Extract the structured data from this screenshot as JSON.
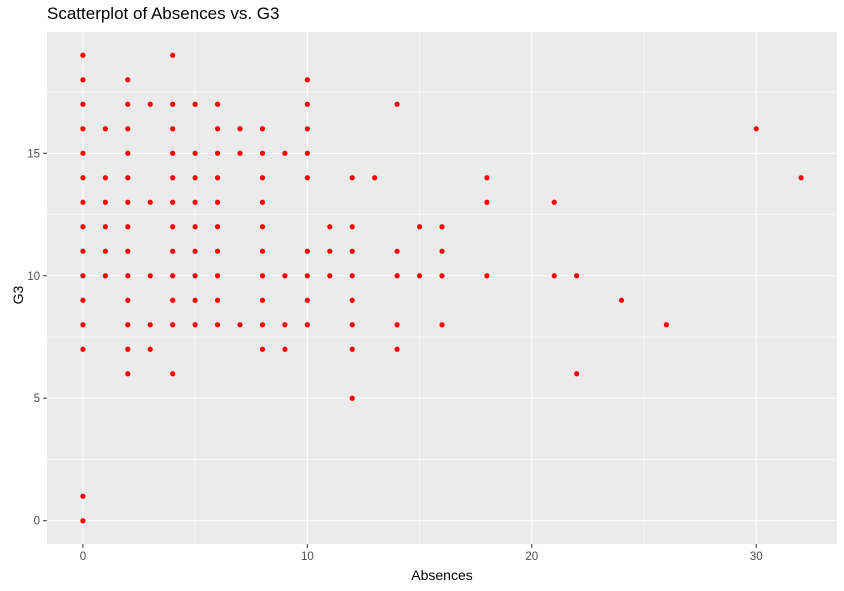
{
  "chart_data": {
    "type": "scatter",
    "title": "Scatterplot of Absences vs. G3",
    "xlabel": "Absences",
    "ylabel": "G3",
    "xlim": [
      -1.6,
      33.6
    ],
    "ylim": [
      -0.95,
      19.95
    ],
    "x_ticks": [
      0,
      10,
      20,
      30
    ],
    "y_ticks": [
      0,
      5,
      10,
      15
    ],
    "grid": true,
    "legend": "none",
    "colors": {
      "point": "#ff0000",
      "panel": "#ebebeb",
      "grid": "#ffffff"
    },
    "points": [
      [
        0,
        0
      ],
      [
        0,
        1
      ],
      [
        0,
        7
      ],
      [
        0,
        8
      ],
      [
        0,
        9
      ],
      [
        0,
        10
      ],
      [
        0,
        11
      ],
      [
        0,
        12
      ],
      [
        0,
        13
      ],
      [
        0,
        14
      ],
      [
        0,
        15
      ],
      [
        0,
        16
      ],
      [
        0,
        17
      ],
      [
        0,
        18
      ],
      [
        0,
        19
      ],
      [
        1,
        10
      ],
      [
        1,
        11
      ],
      [
        1,
        12
      ],
      [
        1,
        13
      ],
      [
        1,
        14
      ],
      [
        1,
        16
      ],
      [
        2,
        6
      ],
      [
        2,
        7
      ],
      [
        2,
        8
      ],
      [
        2,
        9
      ],
      [
        2,
        10
      ],
      [
        2,
        11
      ],
      [
        2,
        12
      ],
      [
        2,
        13
      ],
      [
        2,
        14
      ],
      [
        2,
        15
      ],
      [
        2,
        16
      ],
      [
        2,
        17
      ],
      [
        2,
        18
      ],
      [
        3,
        7
      ],
      [
        3,
        8
      ],
      [
        3,
        10
      ],
      [
        3,
        13
      ],
      [
        3,
        17
      ],
      [
        4,
        6
      ],
      [
        4,
        8
      ],
      [
        4,
        9
      ],
      [
        4,
        10
      ],
      [
        4,
        11
      ],
      [
        4,
        12
      ],
      [
        4,
        13
      ],
      [
        4,
        14
      ],
      [
        4,
        15
      ],
      [
        4,
        16
      ],
      [
        4,
        17
      ],
      [
        4,
        19
      ],
      [
        5,
        8
      ],
      [
        5,
        9
      ],
      [
        5,
        10
      ],
      [
        5,
        11
      ],
      [
        5,
        12
      ],
      [
        5,
        13
      ],
      [
        5,
        14
      ],
      [
        5,
        15
      ],
      [
        5,
        17
      ],
      [
        6,
        8
      ],
      [
        6,
        9
      ],
      [
        6,
        10
      ],
      [
        6,
        11
      ],
      [
        6,
        12
      ],
      [
        6,
        13
      ],
      [
        6,
        14
      ],
      [
        6,
        15
      ],
      [
        6,
        16
      ],
      [
        6,
        17
      ],
      [
        7,
        8
      ],
      [
        7,
        15
      ],
      [
        7,
        16
      ],
      [
        8,
        7
      ],
      [
        8,
        8
      ],
      [
        8,
        9
      ],
      [
        8,
        10
      ],
      [
        8,
        11
      ],
      [
        8,
        12
      ],
      [
        8,
        13
      ],
      [
        8,
        14
      ],
      [
        8,
        15
      ],
      [
        8,
        16
      ],
      [
        9,
        7
      ],
      [
        9,
        8
      ],
      [
        9,
        10
      ],
      [
        9,
        15
      ],
      [
        10,
        8
      ],
      [
        10,
        9
      ],
      [
        10,
        10
      ],
      [
        10,
        11
      ],
      [
        10,
        14
      ],
      [
        10,
        15
      ],
      [
        10,
        16
      ],
      [
        10,
        17
      ],
      [
        10,
        18
      ],
      [
        11,
        10
      ],
      [
        11,
        11
      ],
      [
        11,
        12
      ],
      [
        12,
        5
      ],
      [
        12,
        7
      ],
      [
        12,
        8
      ],
      [
        12,
        9
      ],
      [
        12,
        10
      ],
      [
        12,
        11
      ],
      [
        12,
        12
      ],
      [
        12,
        14
      ],
      [
        13,
        14
      ],
      [
        14,
        7
      ],
      [
        14,
        8
      ],
      [
        14,
        10
      ],
      [
        14,
        11
      ],
      [
        14,
        17
      ],
      [
        15,
        10
      ],
      [
        15,
        12
      ],
      [
        16,
        8
      ],
      [
        16,
        10
      ],
      [
        16,
        11
      ],
      [
        16,
        12
      ],
      [
        18,
        10
      ],
      [
        18,
        13
      ],
      [
        18,
        14
      ],
      [
        21,
        10
      ],
      [
        21,
        13
      ],
      [
        22,
        6
      ],
      [
        22,
        10
      ],
      [
        24,
        9
      ],
      [
        26,
        8
      ],
      [
        30,
        16
      ],
      [
        32,
        14
      ]
    ]
  }
}
